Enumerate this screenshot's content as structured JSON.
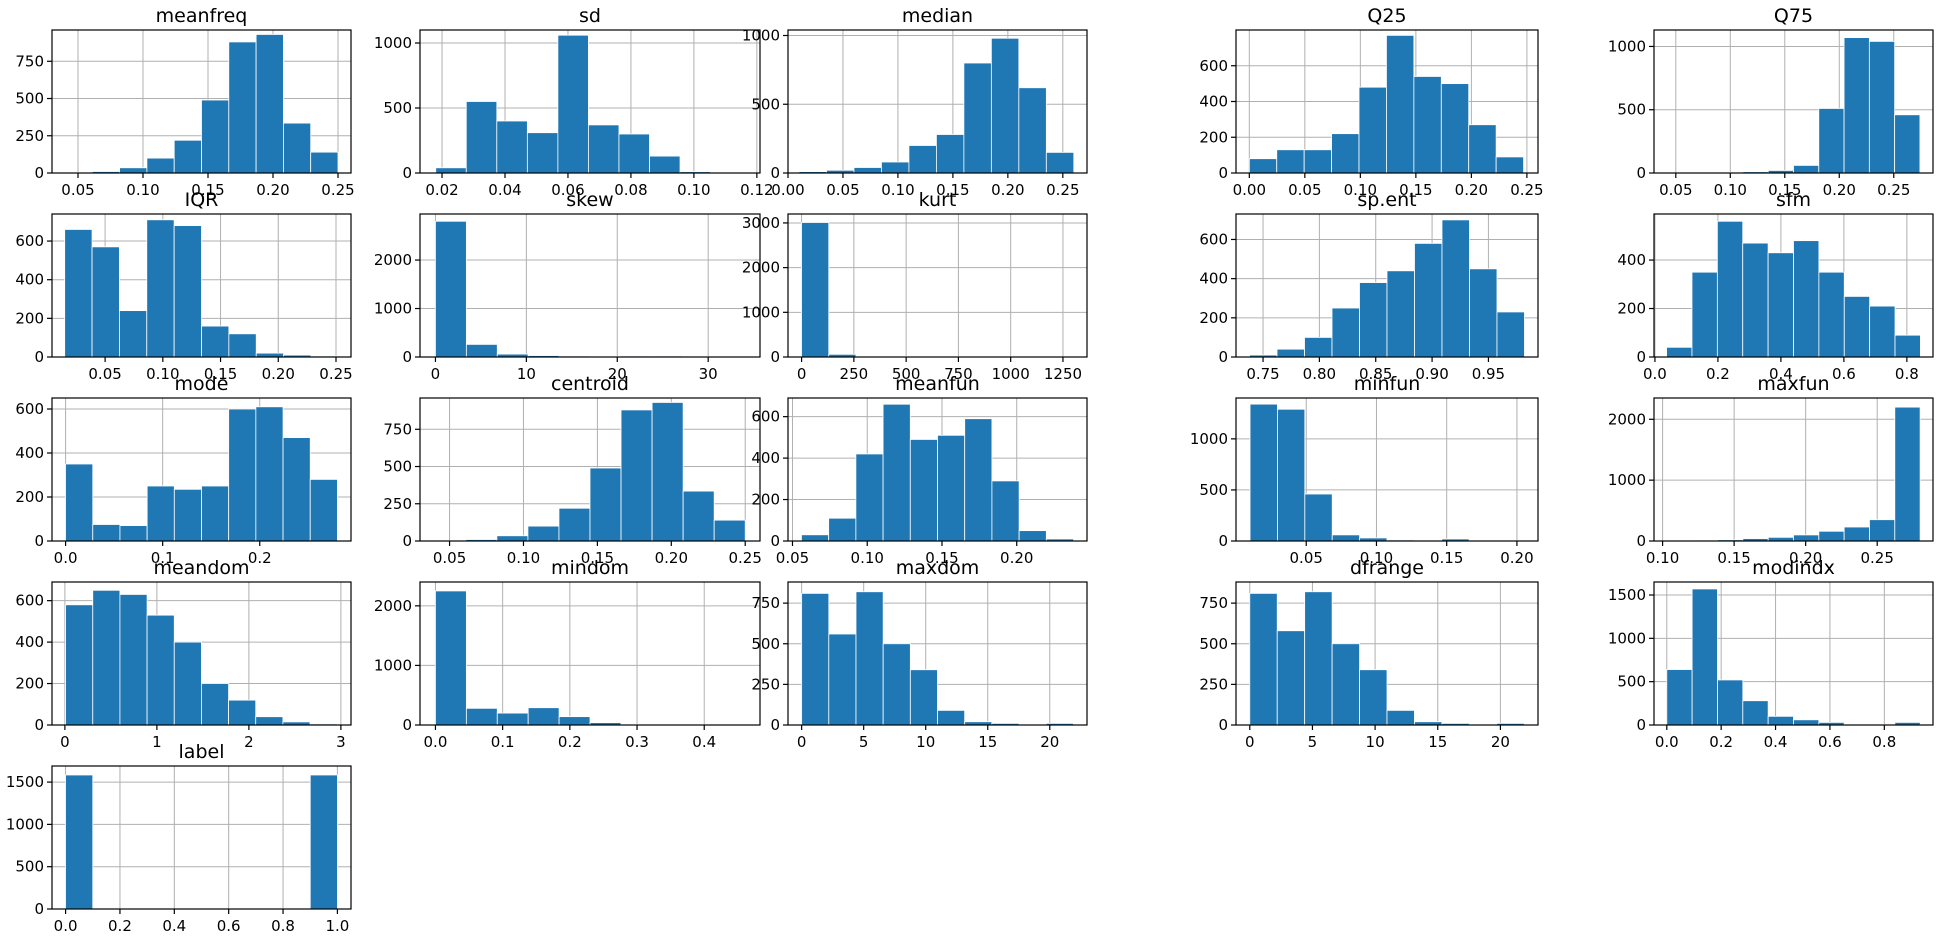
{
  "bar_color": "#1f77b4",
  "bar_edge_color": "#ffffff",
  "chart_data": [
    {
      "type": "bar",
      "title": "meanfreq",
      "range": [
        0.04,
        0.25
      ],
      "xlim": [
        0.03,
        0.26
      ],
      "ylim": [
        0,
        960
      ],
      "xticks": [
        0.05,
        0.1,
        0.15,
        0.2,
        0.25
      ],
      "xtick_labels": [
        "0.05",
        "0.10",
        "0.15",
        "0.20",
        "0.25"
      ],
      "yticks": [
        0,
        250,
        500,
        750
      ],
      "ytick_labels": [
        "0",
        "250",
        "500",
        "750"
      ],
      "values": [
        3,
        10,
        35,
        100,
        220,
        490,
        880,
        930,
        335,
        140
      ]
    },
    {
      "type": "bar",
      "title": "sd",
      "range": [
        0.018,
        0.115
      ],
      "xlim": [
        0.013,
        0.121
      ],
      "ylim": [
        0,
        1100
      ],
      "xticks": [
        0.02,
        0.04,
        0.06,
        0.08,
        0.1,
        0.12
      ],
      "xtick_labels": [
        "0.02",
        "0.04",
        "0.06",
        "0.08",
        "0.10",
        "0.12"
      ],
      "yticks": [
        0,
        500,
        1000
      ],
      "ytick_labels": [
        "0",
        "500",
        "1000"
      ],
      "values": [
        40,
        550,
        400,
        310,
        1060,
        370,
        300,
        130,
        10,
        5
      ]
    },
    {
      "type": "bar",
      "title": "median",
      "range": [
        0.01,
        0.26
      ],
      "xlim": [
        0.0,
        0.272
      ],
      "ylim": [
        0,
        1040
      ],
      "xticks": [
        0.0,
        0.05,
        0.1,
        0.15,
        0.2,
        0.25
      ],
      "xtick_labels": [
        "0.00",
        "0.05",
        "0.10",
        "0.15",
        "0.20",
        "0.25"
      ],
      "yticks": [
        0,
        500,
        1000
      ],
      "ytick_labels": [
        "0",
        "500",
        "1000"
      ],
      "values": [
        10,
        20,
        40,
        80,
        200,
        280,
        800,
        980,
        620,
        150
      ]
    },
    {
      "type": "bar",
      "title": "Q25",
      "range": [
        0.0,
        0.247
      ],
      "xlim": [
        -0.012,
        0.26
      ],
      "ylim": [
        0,
        800
      ],
      "xticks": [
        0.0,
        0.05,
        0.1,
        0.15,
        0.2,
        0.25
      ],
      "xtick_labels": [
        "0.00",
        "0.05",
        "0.10",
        "0.15",
        "0.20",
        "0.25"
      ],
      "yticks": [
        0,
        200,
        400,
        600
      ],
      "ytick_labels": [
        "0",
        "200",
        "400",
        "600"
      ],
      "values": [
        80,
        130,
        130,
        220,
        480,
        770,
        540,
        500,
        270,
        90
      ]
    },
    {
      "type": "bar",
      "title": "Q75",
      "range": [
        0.042,
        0.274
      ],
      "xlim": [
        0.03,
        0.286
      ],
      "ylim": [
        0,
        1130
      ],
      "xticks": [
        0.05,
        0.1,
        0.15,
        0.2,
        0.25
      ],
      "xtick_labels": [
        "0.05",
        "0.10",
        "0.15",
        "0.20",
        "0.25"
      ],
      "yticks": [
        0,
        500,
        1000
      ],
      "ytick_labels": [
        "0",
        "500",
        "1000"
      ],
      "values": [
        2,
        3,
        5,
        10,
        20,
        60,
        510,
        1070,
        1040,
        460
      ]
    },
    {
      "type": "bar",
      "title": "IQR",
      "range": [
        0.015,
        0.252
      ],
      "xlim": [
        0.004,
        0.263
      ],
      "ylim": [
        0,
        740
      ],
      "xticks": [
        0.05,
        0.1,
        0.15,
        0.2,
        0.25
      ],
      "xtick_labels": [
        "0.05",
        "0.10",
        "0.15",
        "0.20",
        "0.25"
      ],
      "yticks": [
        0,
        200,
        400,
        600
      ],
      "ytick_labels": [
        "0",
        "200",
        "400",
        "600"
      ],
      "values": [
        660,
        570,
        240,
        710,
        680,
        160,
        120,
        20,
        10,
        5
      ]
    },
    {
      "type": "bar",
      "title": "skew",
      "range": [
        0,
        34
      ],
      "xlim": [
        -1.7,
        35.7
      ],
      "ylim": [
        0,
        2950
      ],
      "xticks": [
        0,
        10,
        20,
        30
      ],
      "xtick_labels": [
        "0",
        "10",
        "20",
        "30"
      ],
      "yticks": [
        0,
        1000,
        2000
      ],
      "ytick_labels": [
        "0",
        "1000",
        "2000"
      ],
      "values": [
        2800,
        260,
        60,
        30,
        20,
        15,
        20,
        20,
        10,
        5
      ]
    },
    {
      "type": "bar",
      "title": "kurt",
      "range": [
        0,
        1300
      ],
      "xlim": [
        -65,
        1365
      ],
      "ylim": [
        0,
        3200
      ],
      "xticks": [
        0,
        250,
        500,
        750,
        1000,
        1250
      ],
      "xtick_labels": [
        "0",
        "250",
        "500",
        "750",
        "1000",
        "1250"
      ],
      "yticks": [
        0,
        1000,
        2000,
        3000
      ],
      "ytick_labels": [
        "0",
        "1000",
        "2000",
        "3000"
      ],
      "values": [
        3010,
        60,
        20,
        15,
        10,
        10,
        8,
        5,
        3,
        2
      ]
    },
    {
      "type": "bar",
      "title": "sp.ent",
      "range": [
        0.738,
        0.982
      ],
      "xlim": [
        0.726,
        0.994
      ],
      "ylim": [
        0,
        730
      ],
      "xticks": [
        0.75,
        0.8,
        0.85,
        0.9,
        0.95
      ],
      "xtick_labels": [
        "0.75",
        "0.80",
        "0.85",
        "0.90",
        "0.95"
      ],
      "yticks": [
        0,
        200,
        400,
        600
      ],
      "ytick_labels": [
        "0",
        "200",
        "400",
        "600"
      ],
      "values": [
        10,
        40,
        100,
        250,
        380,
        440,
        580,
        700,
        450,
        230
      ]
    },
    {
      "type": "bar",
      "title": "sfm",
      "range": [
        0.037,
        0.843
      ],
      "xlim": [
        -0.003,
        0.883
      ],
      "ylim": [
        0,
        590
      ],
      "xticks": [
        0.0,
        0.2,
        0.4,
        0.6,
        0.8
      ],
      "xtick_labels": [
        "0.0",
        "0.2",
        "0.4",
        "0.6",
        "0.8"
      ],
      "yticks": [
        0,
        200,
        400
      ],
      "ytick_labels": [
        "0",
        "200",
        "400"
      ],
      "values": [
        40,
        350,
        560,
        470,
        430,
        480,
        350,
        250,
        210,
        90
      ]
    },
    {
      "type": "bar",
      "title": "mode",
      "range": [
        0,
        0.28
      ],
      "xlim": [
        -0.014,
        0.294
      ],
      "ylim": [
        0,
        650
      ],
      "xticks": [
        0.0,
        0.1,
        0.2
      ],
      "xtick_labels": [
        "0.0",
        "0.1",
        "0.2"
      ],
      "yticks": [
        0,
        200,
        400,
        600
      ],
      "ytick_labels": [
        "0",
        "200",
        "400",
        "600"
      ],
      "values": [
        350,
        75,
        70,
        250,
        235,
        250,
        600,
        610,
        470,
        280
      ]
    },
    {
      "type": "bar",
      "title": "centroid",
      "range": [
        0.04,
        0.25
      ],
      "xlim": [
        0.03,
        0.26
      ],
      "ylim": [
        0,
        960
      ],
      "xticks": [
        0.05,
        0.1,
        0.15,
        0.2,
        0.25
      ],
      "xtick_labels": [
        "0.05",
        "0.10",
        "0.15",
        "0.20",
        "0.25"
      ],
      "yticks": [
        0,
        250,
        500,
        750
      ],
      "ytick_labels": [
        "0",
        "250",
        "500",
        "750"
      ],
      "values": [
        3,
        10,
        35,
        100,
        220,
        490,
        880,
        930,
        335,
        140
      ]
    },
    {
      "type": "bar",
      "title": "meanfun",
      "range": [
        0.056,
        0.238
      ],
      "xlim": [
        0.047,
        0.247
      ],
      "ylim": [
        0,
        690
      ],
      "xticks": [
        0.05,
        0.1,
        0.15,
        0.2
      ],
      "xtick_labels": [
        "0.05",
        "0.10",
        "0.15",
        "0.20"
      ],
      "yticks": [
        0,
        200,
        400,
        600
      ],
      "ytick_labels": [
        "0",
        "200",
        "400",
        "600"
      ],
      "values": [
        30,
        110,
        420,
        660,
        490,
        510,
        590,
        290,
        50,
        10
      ]
    },
    {
      "type": "bar",
      "title": "minfun",
      "range": [
        0.01,
        0.205
      ],
      "xlim": [
        0.0,
        0.215
      ],
      "ylim": [
        0,
        1400
      ],
      "xticks": [
        0.05,
        0.1,
        0.15,
        0.2
      ],
      "xtick_labels": [
        "0.05",
        "0.10",
        "0.15",
        "0.20"
      ],
      "yticks": [
        0,
        500,
        1000
      ],
      "ytick_labels": [
        "0",
        "500",
        "1000"
      ],
      "values": [
        1340,
        1290,
        460,
        60,
        30,
        10,
        5,
        20,
        5,
        3
      ]
    },
    {
      "type": "bar",
      "title": "maxfun",
      "range": [
        0.103,
        0.28
      ],
      "xlim": [
        0.094,
        0.289
      ],
      "ylim": [
        0,
        2350
      ],
      "xticks": [
        0.1,
        0.15,
        0.2,
        0.25
      ],
      "xtick_labels": [
        "0.10",
        "0.15",
        "0.20",
        "0.25"
      ],
      "yticks": [
        0,
        1000,
        2000
      ],
      "ytick_labels": [
        "0",
        "1000",
        "2000"
      ],
      "values": [
        10,
        15,
        20,
        40,
        60,
        100,
        160,
        230,
        350,
        2200
      ]
    },
    {
      "type": "bar",
      "title": "meandom",
      "range": [
        0.008,
        2.96
      ],
      "xlim": [
        -0.14,
        3.11
      ],
      "ylim": [
        0,
        690
      ],
      "xticks": [
        0,
        1,
        2,
        3
      ],
      "xtick_labels": [
        "0",
        "1",
        "2",
        "3"
      ],
      "yticks": [
        0,
        200,
        400,
        600
      ],
      "ytick_labels": [
        "0",
        "200",
        "400",
        "600"
      ],
      "values": [
        580,
        650,
        630,
        530,
        400,
        200,
        120,
        40,
        15,
        5
      ]
    },
    {
      "type": "bar",
      "title": "mindom",
      "range": [
        0,
        0.46
      ],
      "xlim": [
        -0.023,
        0.483
      ],
      "ylim": [
        0,
        2400
      ],
      "xticks": [
        0.0,
        0.1,
        0.2,
        0.3,
        0.4
      ],
      "xtick_labels": [
        "0.0",
        "0.1",
        "0.2",
        "0.3",
        "0.4"
      ],
      "yticks": [
        0,
        1000,
        2000
      ],
      "ytick_labels": [
        "0",
        "1000",
        "2000"
      ],
      "values": [
        2250,
        280,
        200,
        290,
        140,
        40,
        10,
        5,
        3,
        2
      ]
    },
    {
      "type": "bar",
      "title": "maxdom",
      "range": [
        0,
        21.9
      ],
      "xlim": [
        -1.1,
        23.0
      ],
      "ylim": [
        0,
        880
      ],
      "xticks": [
        0,
        5,
        10,
        15,
        20
      ],
      "xtick_labels": [
        "0",
        "5",
        "10",
        "15",
        "20"
      ],
      "yticks": [
        0,
        250,
        500,
        750
      ],
      "ytick_labels": [
        "0",
        "250",
        "500",
        "750"
      ],
      "values": [
        810,
        560,
        820,
        500,
        340,
        90,
        20,
        10,
        5,
        10
      ]
    },
    {
      "type": "bar",
      "title": "dfrange",
      "range": [
        0,
        21.9
      ],
      "xlim": [
        -1.1,
        23.0
      ],
      "ylim": [
        0,
        880
      ],
      "xticks": [
        0,
        5,
        10,
        15,
        20
      ],
      "xtick_labels": [
        "0",
        "5",
        "10",
        "15",
        "20"
      ],
      "yticks": [
        0,
        250,
        500,
        750
      ],
      "ytick_labels": [
        "0",
        "250",
        "500",
        "750"
      ],
      "values": [
        810,
        580,
        820,
        500,
        340,
        90,
        20,
        10,
        5,
        10
      ]
    },
    {
      "type": "bar",
      "title": "modindx",
      "range": [
        0,
        0.932
      ],
      "xlim": [
        -0.047,
        0.979
      ],
      "ylim": [
        0,
        1650
      ],
      "xticks": [
        0.0,
        0.2,
        0.4,
        0.6,
        0.8
      ],
      "xtick_labels": [
        "0.0",
        "0.2",
        "0.4",
        "0.6",
        "0.8"
      ],
      "yticks": [
        0,
        500,
        1000,
        1500
      ],
      "ytick_labels": [
        "0",
        "500",
        "1000",
        "1500"
      ],
      "values": [
        640,
        1570,
        520,
        280,
        100,
        60,
        30,
        10,
        5,
        30
      ]
    },
    {
      "type": "bar",
      "title": "label",
      "range": [
        0,
        1
      ],
      "xlim": [
        -0.05,
        1.05
      ],
      "ylim": [
        0,
        1690
      ],
      "xticks": [
        0.0,
        0.2,
        0.4,
        0.6,
        0.8,
        1.0
      ],
      "xtick_labels": [
        "0.0",
        "0.2",
        "0.4",
        "0.6",
        "0.8",
        "1.0"
      ],
      "yticks": [
        0,
        500,
        1000,
        1500
      ],
      "ytick_labels": [
        "0",
        "500",
        "1000",
        "1500"
      ],
      "values": [
        1584,
        0,
        0,
        0,
        0,
        0,
        0,
        0,
        0,
        1584
      ]
    }
  ]
}
